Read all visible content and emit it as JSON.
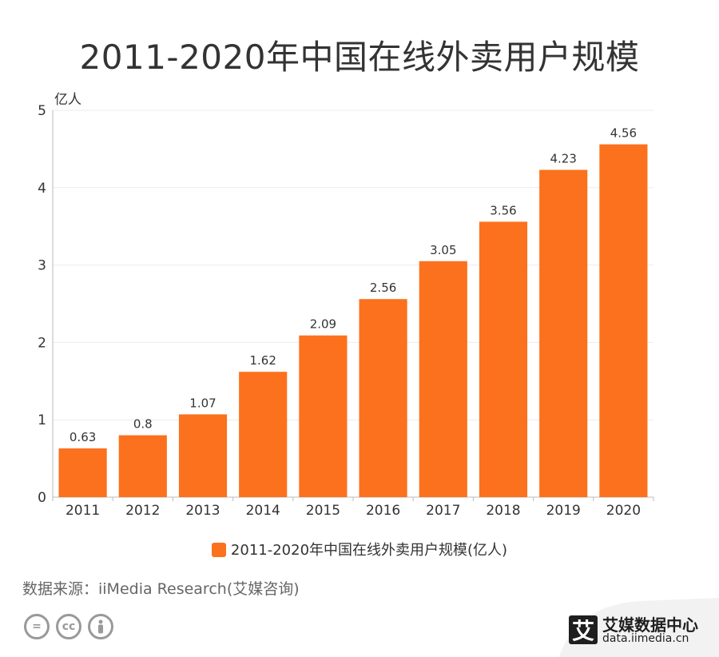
{
  "title": "2011-2020年中国在线外卖用户规模",
  "chart_data": {
    "type": "bar",
    "title": "2011-2020年中国在线外卖用户规模",
    "unit_label": "亿人",
    "categories": [
      "2011",
      "2012",
      "2013",
      "2014",
      "2015",
      "2016",
      "2017",
      "2018",
      "2019",
      "2020"
    ],
    "series": [
      {
        "name": "2011-2020年中国在线外卖用户规模(亿人)",
        "values": [
          0.63,
          0.8,
          1.07,
          1.62,
          2.09,
          2.56,
          3.05,
          3.56,
          4.23,
          4.56
        ],
        "labels": [
          "0.63",
          "0.8",
          "1.07",
          "1.62",
          "2.09",
          "2.56",
          "3.05",
          "3.56",
          "4.23",
          "4.56"
        ]
      }
    ],
    "ylim": [
      0,
      5
    ],
    "yticks": [
      "0",
      "1",
      "2",
      "3",
      "4",
      "5"
    ],
    "grid": true,
    "legend_position": "bottom"
  },
  "colors": {
    "bar": "#fc711d",
    "grid": "#ececec",
    "axis": "#bbbbbb",
    "text": "#333333"
  },
  "legend": {
    "label": "2011-2020年中国在线外卖用户规模(亿人)"
  },
  "source": "数据来源：iiMedia Research(艾媒咨询)",
  "cc_icons": [
    "equals-icon",
    "cc-icon",
    "person-icon"
  ],
  "brand": {
    "logo_char": "艾",
    "name": "艾媒数据中心",
    "url": "data.iimedia.cn"
  }
}
